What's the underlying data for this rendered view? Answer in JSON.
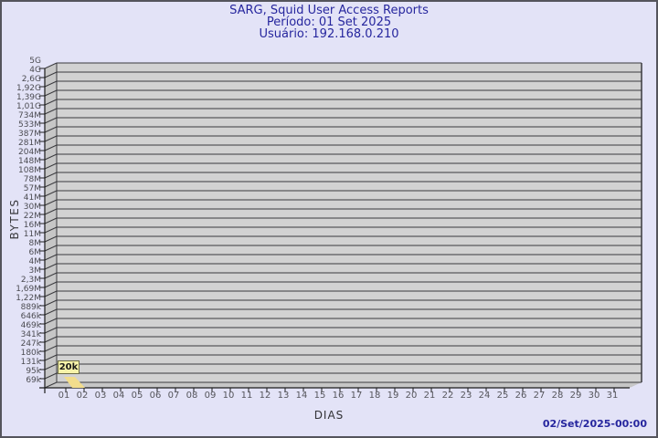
{
  "header": {
    "title": "SARG, Squid User Access Reports",
    "period": "Período: 01 Set 2025",
    "user": "Usuário: 192.168.0.210"
  },
  "footer": {
    "generated": "02/Set/2025-00:00"
  },
  "chart_data": {
    "type": "bar",
    "title": "SARG, Squid User Access Reports",
    "subtitle1": "Período: 01 Set 2025",
    "subtitle2": "Usuário: 192.168.0.210",
    "xlabel": "DIAS",
    "ylabel": "BYTES",
    "x_ticks": [
      "01",
      "02",
      "03",
      "04",
      "05",
      "06",
      "07",
      "08",
      "09",
      "10",
      "11",
      "12",
      "13",
      "14",
      "15",
      "16",
      "17",
      "18",
      "19",
      "20",
      "21",
      "22",
      "23",
      "24",
      "25",
      "26",
      "27",
      "28",
      "29",
      "30",
      "31"
    ],
    "y_ticks_top_to_bottom": [
      "5G",
      "4G",
      "2,6G",
      "1,92G",
      "1,39G",
      "1,01G",
      "734M",
      "533M",
      "387M",
      "281M",
      "204M",
      "148M",
      "108M",
      "78M",
      "57M",
      "41M",
      "30M",
      "22M",
      "16M",
      "11M",
      "8M",
      "6M",
      "4M",
      "3M",
      "2,3M",
      "1,69M",
      "1,22M",
      "889k",
      "646k",
      "469k",
      "341k",
      "247k",
      "180k",
      "131k",
      "95k",
      "69k"
    ],
    "y_scale": "log-like, 69k (bottom) to 5G (top)",
    "grid": "horizontal-only",
    "style": "3d-left-depth",
    "series": [
      {
        "name": "BYTES",
        "points": [
          {
            "x": "01",
            "value": "20k",
            "value_bytes": 20000
          }
        ]
      }
    ],
    "colors": {
      "background": "#e3e3f7",
      "frame_border": "#54545c",
      "title_text": "#26269e",
      "plot_face": "#d2d2d2",
      "plot_side": "#c6c6c6",
      "plot_floor": "#c6c6c6",
      "gridline": "#3a3a3e",
      "axis": "#1c1c1c",
      "tick_text": "#56565c",
      "bar_fill": "#f2dd8d",
      "bar_label_bg": "#f7f3a9",
      "bar_label_border": "#6b6b46"
    }
  }
}
